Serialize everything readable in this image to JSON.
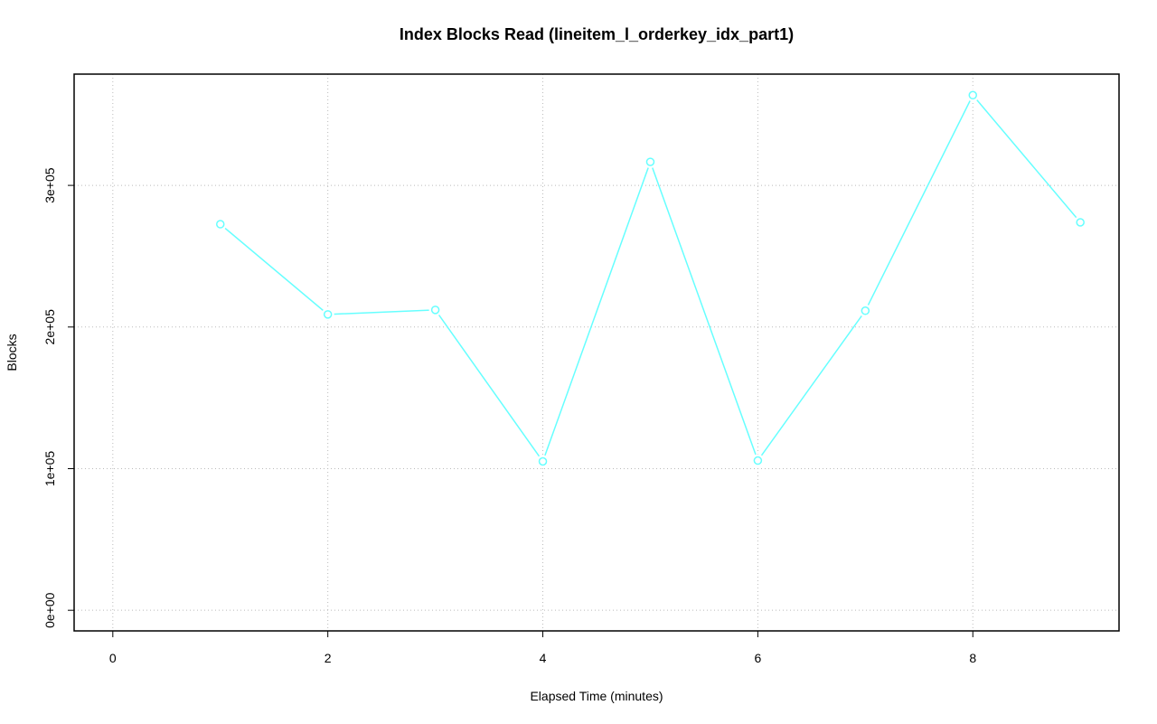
{
  "chart_data": {
    "type": "line",
    "title": "Index Blocks Read (lineitem_l_orderkey_idx_part1)",
    "x_label": "Elapsed Time (minutes)",
    "y_label": "Blocks",
    "x": [
      1,
      2,
      3,
      4,
      5,
      6,
      7,
      8,
      9
    ],
    "values": [
      272600,
      208900,
      212100,
      105100,
      316600,
      105700,
      211500,
      363700,
      273900
    ],
    "color": "#66ffff",
    "xlim": [
      -0.36,
      9.36
    ],
    "ylim": [
      -14560,
      378560
    ],
    "xticks": [
      0,
      2,
      4,
      6,
      8
    ],
    "yticks": [
      {
        "value": 0,
        "label": "0e+00"
      },
      {
        "value": 100000,
        "label": "1e+05"
      },
      {
        "value": 200000,
        "label": "2e+05"
      },
      {
        "value": 300000,
        "label": "3e+05"
      }
    ],
    "grid": true
  }
}
